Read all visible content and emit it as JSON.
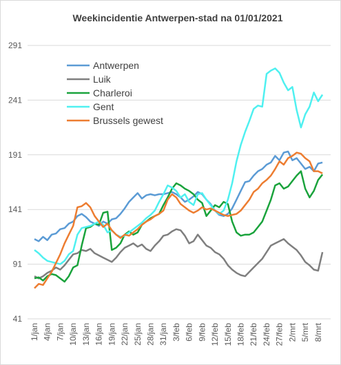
{
  "chart_data": {
    "type": "line",
    "title": "Weekincidentie  Antwerpen-stad na 01/01/2021",
    "categories": [
      "1/jan",
      null,
      null,
      "4/jan",
      null,
      null,
      "7/jan",
      null,
      null,
      "10/jan",
      null,
      null,
      "13/jan",
      null,
      null,
      "16/jan",
      null,
      null,
      "19/jan",
      null,
      null,
      "22/jan",
      null,
      null,
      "25/jan",
      null,
      null,
      "28/jan",
      null,
      null,
      "31/jan",
      null,
      null,
      "3/feb",
      null,
      null,
      "6/feb",
      null,
      null,
      "9/feb",
      null,
      null,
      "12/feb",
      null,
      null,
      "15/feb",
      null,
      null,
      "18/feb",
      null,
      null,
      "21/feb",
      null,
      null,
      "24/feb",
      null,
      null,
      "27/feb",
      null,
      null,
      "2/mrt",
      null,
      null,
      "5/mrt",
      null,
      null,
      "8/mrt",
      null
    ],
    "series": [
      {
        "name": "Antwerpen",
        "color": "#5b9bd5",
        "values": [
          114,
          112,
          116,
          113,
          118,
          119,
          123,
          124,
          128,
          130,
          135,
          137,
          134,
          130,
          128,
          126,
          130,
          128,
          132,
          133,
          137,
          142,
          148,
          152,
          156,
          151,
          154,
          155,
          154,
          155,
          155,
          156,
          157,
          155,
          152,
          148,
          150,
          153,
          157,
          155,
          150,
          146,
          140,
          136,
          135,
          137,
          142,
          150,
          158,
          166,
          167,
          172,
          176,
          178,
          182,
          184,
          190,
          186,
          193,
          194,
          186,
          188,
          183,
          178,
          180,
          176,
          183,
          184
        ]
      },
      {
        "name": "Luik",
        "color": "#7f7f7f",
        "values": [
          80,
          78,
          80,
          83,
          85,
          88,
          86,
          90,
          95,
          100,
          101,
          104,
          103,
          105,
          101,
          99,
          97,
          95,
          93,
          97,
          102,
          106,
          108,
          110,
          107,
          109,
          105,
          103,
          108,
          112,
          117,
          118,
          121,
          123,
          122,
          117,
          110,
          112,
          118,
          113,
          108,
          106,
          102,
          100,
          96,
          90,
          86,
          83,
          81,
          80,
          84,
          88,
          92,
          96,
          102,
          108,
          110,
          112,
          114,
          110,
          107,
          104,
          99,
          93,
          90,
          86,
          85,
          102
        ]
      },
      {
        "name": "Charleroi",
        "color": "#1aa33c",
        "values": [
          78,
          79,
          76,
          80,
          82,
          81,
          78,
          75,
          80,
          88,
          90,
          108,
          124,
          125,
          128,
          127,
          138,
          139,
          104,
          106,
          110,
          118,
          121,
          118,
          120,
          127,
          130,
          133,
          135,
          137,
          145,
          152,
          160,
          165,
          163,
          160,
          158,
          155,
          150,
          147,
          135,
          140,
          145,
          143,
          148,
          146,
          130,
          120,
          117,
          118,
          118,
          120,
          125,
          130,
          140,
          150,
          163,
          165,
          160,
          162,
          167,
          172,
          176,
          160,
          152,
          158,
          168,
          173
        ]
      },
      {
        "name": "Gent",
        "color": "#4ff0f0",
        "values": [
          104,
          101,
          97,
          94,
          93,
          92,
          91,
          94,
          100,
          103,
          118,
          124,
          125,
          126,
          128,
          130,
          127,
          120,
          122,
          118,
          116,
          117,
          120,
          123,
          126,
          129,
          133,
          136,
          140,
          148,
          155,
          163,
          161,
          158,
          152,
          155,
          148,
          145,
          155,
          156,
          150,
          145,
          140,
          137,
          140,
          150,
          165,
          185,
          200,
          212,
          222,
          233,
          236,
          235,
          265,
          268,
          270,
          266,
          257,
          250,
          253,
          232,
          216,
          228,
          235,
          248,
          240,
          246
        ]
      },
      {
        "name": "Brussels gewest",
        "color": "#ed7d31",
        "values": [
          69,
          73,
          72,
          78,
          84,
          92,
          100,
          110,
          118,
          126,
          143,
          144,
          147,
          143,
          135,
          130,
          125,
          128,
          122,
          118,
          115,
          118,
          117,
          120,
          123,
          127,
          130,
          132,
          135,
          137,
          140,
          150,
          155,
          152,
          146,
          143,
          140,
          138,
          140,
          143,
          141,
          142,
          140,
          138,
          136,
          135,
          136,
          137,
          140,
          145,
          150,
          157,
          160,
          165,
          168,
          172,
          178,
          185,
          182,
          188,
          190,
          193,
          192,
          188,
          185,
          176,
          176,
          174
        ]
      }
    ],
    "ylim": [
      41,
      291
    ],
    "yticks": [
      41,
      91,
      141,
      191,
      241,
      291
    ],
    "grid": true,
    "legend": "upper left"
  }
}
